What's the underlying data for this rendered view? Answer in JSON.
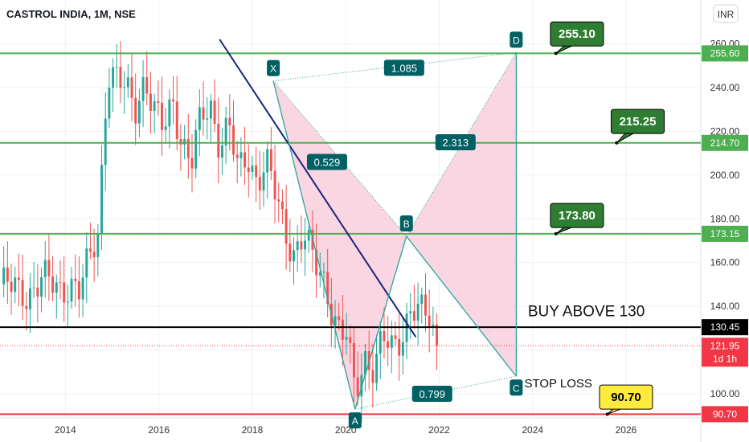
{
  "header": {
    "title": "CASTROL INDIA, 1M, NSE",
    "currency": "INR"
  },
  "chart_data": {
    "type": "candlestick",
    "title": "CASTROL INDIA, 1M, NSE",
    "x_ticks": [
      "2014",
      "2016",
      "2018",
      "2020",
      "2022",
      "2024",
      "2026"
    ],
    "y_ticks": [
      "100.00",
      "120.00",
      "140.00",
      "160.00",
      "180.00",
      "200.00",
      "220.00",
      "240.00",
      "260.00"
    ],
    "ylim": [
      89,
      280
    ],
    "xlim": [
      2012.6,
      2027.6
    ],
    "grid": true,
    "price_series": [
      [
        2012.6,
        150
      ],
      [
        2012.9,
        148
      ],
      [
        2013.2,
        146
      ],
      [
        2013.5,
        152
      ],
      [
        2013.7,
        150
      ],
      [
        2013.9,
        148
      ],
      [
        2014.1,
        151
      ],
      [
        2014.3,
        146
      ],
      [
        2014.5,
        160
      ],
      [
        2014.7,
        175
      ],
      [
        2014.9,
        248
      ],
      [
        2015.1,
        243
      ],
      [
        2015.3,
        238
      ],
      [
        2015.5,
        232
      ],
      [
        2015.7,
        245
      ],
      [
        2015.9,
        228
      ],
      [
        2016.1,
        220
      ],
      [
        2016.3,
        235
      ],
      [
        2016.5,
        215
      ],
      [
        2016.7,
        205
      ],
      [
        2016.9,
        225
      ],
      [
        2017.1,
        233
      ],
      [
        2017.3,
        215
      ],
      [
        2017.5,
        222
      ],
      [
        2017.7,
        200
      ],
      [
        2017.9,
        210
      ],
      [
        2018.1,
        198
      ],
      [
        2018.3,
        205
      ],
      [
        2018.5,
        190
      ],
      [
        2018.7,
        175
      ],
      [
        2018.9,
        165
      ],
      [
        2019.1,
        172
      ],
      [
        2019.3,
        160
      ],
      [
        2019.5,
        155
      ],
      [
        2019.7,
        140
      ],
      [
        2019.9,
        125
      ],
      [
        2020.0,
        128
      ],
      [
        2020.2,
        100
      ],
      [
        2020.4,
        118
      ],
      [
        2020.6,
        112
      ],
      [
        2020.8,
        124
      ],
      [
        2021.0,
        120
      ],
      [
        2021.2,
        128
      ],
      [
        2021.4,
        140
      ],
      [
        2021.6,
        136
      ],
      [
        2021.8,
        134
      ],
      [
        2021.95,
        121.95
      ]
    ],
    "horizontal_levels": [
      {
        "value": 255.6,
        "label": "255.60",
        "color": "#4caf50"
      },
      {
        "value": 214.7,
        "label": "214.70",
        "color": "#4caf50"
      },
      {
        "value": 173.15,
        "label": "173.15",
        "color": "#4caf50"
      },
      {
        "value": 130.45,
        "label": "130.45",
        "color": "#000000"
      },
      {
        "value": 90.7,
        "label": "90.70",
        "color": "#f23645"
      }
    ],
    "last_price": {
      "value": 121.95,
      "label": "121.95",
      "countdown": "1d 1h",
      "color": "#f23645"
    },
    "trendline": {
      "start": [
        2017.3,
        262
      ],
      "end": [
        2021.5,
        126
      ],
      "color": "#1a237e"
    },
    "harmonic_pattern": {
      "points": [
        {
          "label": "X",
          "x": 2018.45,
          "y": 243
        },
        {
          "label": "A",
          "x": 2020.2,
          "y": 93
        },
        {
          "label": "B",
          "x": 2021.3,
          "y": 172
        },
        {
          "label": "C",
          "x": 2023.65,
          "y": 108
        },
        {
          "label": "D",
          "x": 2023.65,
          "y": 256
        }
      ],
      "ratios": [
        {
          "label": "1.085",
          "x": 2021.25,
          "y": 249
        },
        {
          "label": "0.529",
          "x": 2019.6,
          "y": 206
        },
        {
          "label": "2.313",
          "x": 2022.35,
          "y": 215
        },
        {
          "label": "0.799",
          "x": 2021.85,
          "y": 100
        }
      ],
      "fill_color": "#f8c8d8",
      "line_color": "#26a69a"
    },
    "callouts": [
      {
        "label": "255.10",
        "x": 2024.95,
        "y": 264.5,
        "anchor_x": 2024.5,
        "anchor_y": 255.6,
        "bg": "#2e7d32",
        "fg": "#ffffff"
      },
      {
        "label": "215.25",
        "x": 2026.25,
        "y": 224.5,
        "anchor_x": 2025.8,
        "anchor_y": 214.7,
        "bg": "#2e7d32",
        "fg": "#ffffff"
      },
      {
        "label": "173.80",
        "x": 2024.95,
        "y": 181.5,
        "anchor_x": 2024.5,
        "anchor_y": 173.15,
        "bg": "#2e7d32",
        "fg": "#ffffff"
      },
      {
        "label": "90.70",
        "x": 2026.0,
        "y": 98.5,
        "anchor_x": 2025.6,
        "anchor_y": 90.7,
        "bg": "#ffeb3b",
        "fg": "#000000"
      }
    ],
    "annotations": [
      {
        "label": "BUY ABOVE 130",
        "x": 2025.15,
        "y": 135.5,
        "size": "big"
      },
      {
        "label": "STOP LOSS",
        "x": 2024.55,
        "y": 103,
        "size": "mid"
      }
    ]
  }
}
